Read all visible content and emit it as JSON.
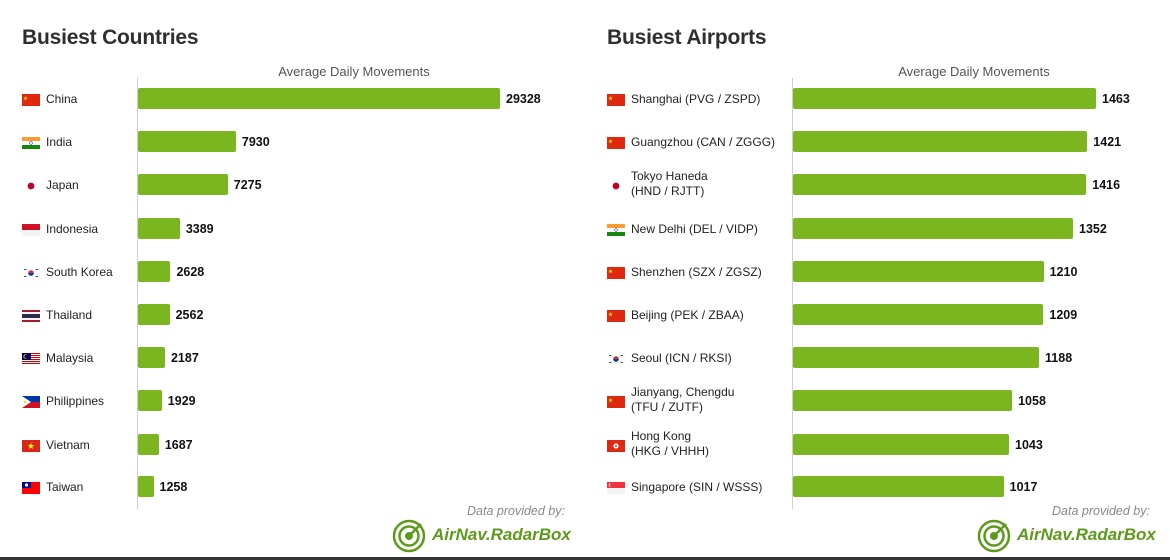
{
  "colors": {
    "bar": "#7bb51f",
    "logo": "#5d9a1a"
  },
  "chart_data": [
    {
      "type": "bar",
      "orientation": "horizontal",
      "title": "Busiest Countries",
      "xlabel": "Average Daily Movements",
      "categories": [
        "China",
        "India",
        "Japan",
        "Indonesia",
        "South Korea",
        "Thailand",
        "Malaysia",
        "Philippines",
        "Vietnam",
        "Taiwan"
      ],
      "flags": [
        "cn",
        "in",
        "jp",
        "id",
        "kr",
        "th",
        "my",
        "ph",
        "vn",
        "tw"
      ],
      "values": [
        29328,
        7930,
        7275,
        3389,
        2628,
        2562,
        2187,
        1929,
        1687,
        1258
      ],
      "note": "Data provided by:",
      "brand": "AirNav.RadarBox"
    },
    {
      "type": "bar",
      "orientation": "horizontal",
      "title": "Busiest Airports",
      "xlabel": "Average Daily Movements",
      "categories": [
        "Shanghai (PVG / ZSPD)",
        "Guangzhou (CAN / ZGGG)",
        "Tokyo Haneda\n(HND / RJTT)",
        "New Delhi (DEL / VIDP)",
        "Shenzhen (SZX / ZGSZ)",
        "Beijing (PEK / ZBAA)",
        "Seoul (ICN / RKSI)",
        "Jianyang, Chengdu\n(TFU / ZUTF)",
        "Hong Kong\n(HKG / VHHH)",
        "Singapore (SIN / WSSS)"
      ],
      "flags": [
        "cn",
        "cn",
        "jp",
        "in",
        "cn",
        "cn",
        "kr",
        "cn",
        "hk",
        "sg"
      ],
      "values": [
        1463,
        1421,
        1416,
        1352,
        1210,
        1209,
        1188,
        1058,
        1043,
        1017
      ],
      "note": "Data provided by:",
      "brand": "AirNav.RadarBox"
    }
  ]
}
